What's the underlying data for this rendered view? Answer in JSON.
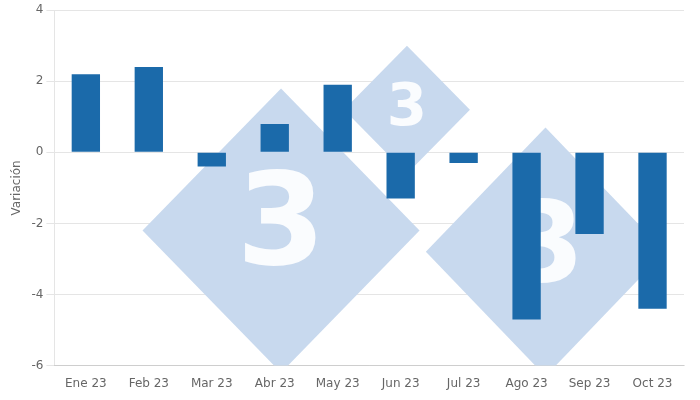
{
  "chart_data": {
    "type": "bar",
    "categories": [
      "Ene 23",
      "Feb 23",
      "Mar 23",
      "Abr 23",
      "May 23",
      "Jun 23",
      "Jul 23",
      "Ago 23",
      "Sep 23",
      "Oct 23"
    ],
    "values": [
      2.2,
      2.4,
      -0.4,
      0.8,
      1.9,
      -1.3,
      -0.3,
      -4.7,
      -2.3,
      -4.4
    ],
    "color": "#1b6aaa",
    "ylabel": "Variación",
    "ylim": [
      -6,
      4
    ],
    "yticks": [
      -6,
      -4,
      -2,
      0,
      2,
      4
    ],
    "grid": true,
    "annotations": [
      "3",
      "3",
      "3"
    ]
  }
}
